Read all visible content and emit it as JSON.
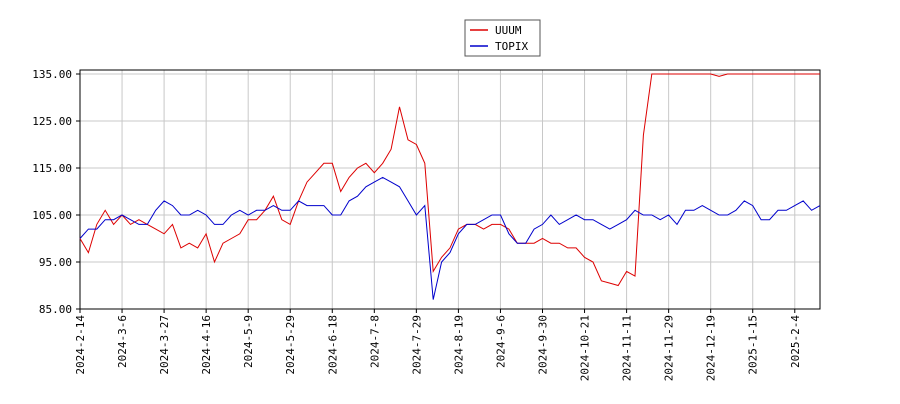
{
  "chart_data": {
    "type": "line",
    "categories": [
      "2024-2-14",
      null,
      null,
      null,
      null,
      "2024-3-6",
      null,
      null,
      null,
      null,
      "2024-3-27",
      null,
      null,
      null,
      null,
      "2024-4-16",
      null,
      null,
      null,
      null,
      "2024-5-9",
      null,
      null,
      null,
      null,
      "2024-5-29",
      null,
      null,
      null,
      null,
      "2024-6-18",
      null,
      null,
      null,
      null,
      "2024-7-8",
      null,
      null,
      null,
      null,
      "2024-7-29",
      null,
      null,
      null,
      null,
      "2024-8-19",
      null,
      null,
      null,
      null,
      "2024-9-6",
      null,
      null,
      null,
      null,
      "2024-9-30",
      null,
      null,
      null,
      null,
      "2024-10-21",
      null,
      null,
      null,
      null,
      "2024-11-11",
      null,
      null,
      null,
      null,
      "2024-11-29",
      null,
      null,
      null,
      null,
      "2024-12-19",
      null,
      null,
      null,
      null,
      "2025-1-15",
      null,
      null,
      null,
      null,
      "2025-2-4",
      null,
      null,
      null
    ],
    "series": [
      {
        "name": "UUUM",
        "color": "#dd0000",
        "values": [
          100,
          97,
          103,
          106,
          103,
          105,
          103,
          104,
          103,
          102,
          101,
          103,
          98,
          99,
          98,
          101,
          95,
          99,
          100,
          101,
          104,
          104,
          106,
          109,
          104,
          103,
          108,
          112,
          114,
          116,
          116,
          110,
          113,
          115,
          116,
          114,
          116,
          119,
          128,
          121,
          120,
          116,
          93,
          96,
          98,
          102,
          103,
          103,
          102,
          103,
          103,
          102,
          99,
          99,
          99,
          100,
          99,
          99,
          98,
          98,
          96,
          95,
          91,
          90.5,
          90,
          93,
          92,
          122,
          135,
          135,
          135,
          135,
          135,
          135,
          135,
          135,
          134.5,
          135,
          135,
          135,
          135,
          135,
          135,
          135,
          135,
          135,
          135,
          135,
          135
        ]
      },
      {
        "name": "TOPIX",
        "color": "#0000cc",
        "values": [
          100,
          102,
          102,
          104,
          104,
          105,
          104,
          103,
          103,
          106,
          108,
          107,
          105,
          105,
          106,
          105,
          103,
          103,
          105,
          106,
          105,
          106,
          106,
          107,
          106,
          106,
          108,
          107,
          107,
          107,
          105,
          105,
          108,
          109,
          111,
          112,
          113,
          112,
          111,
          108,
          105,
          107,
          87,
          95,
          97,
          101,
          103,
          103,
          104,
          105,
          105,
          101,
          99,
          99,
          102,
          103,
          105,
          103,
          104,
          105,
          104,
          104,
          103,
          102,
          103,
          104,
          106,
          105,
          105,
          104,
          105,
          103,
          106,
          106,
          107,
          106,
          105,
          105,
          106,
          108,
          107,
          104,
          104,
          106,
          106,
          107,
          108,
          106,
          107
        ]
      }
    ],
    "ylim": [
      85,
      135
    ],
    "yticks": [
      {
        "value": 85,
        "label": "85.00"
      },
      {
        "value": 95,
        "label": "95.00"
      },
      {
        "value": 105,
        "label": "105.00"
      },
      {
        "value": 115,
        "label": "115.00"
      },
      {
        "value": 125,
        "label": "125.00"
      },
      {
        "value": 135,
        "label": "135.00"
      }
    ],
    "grid": true
  }
}
